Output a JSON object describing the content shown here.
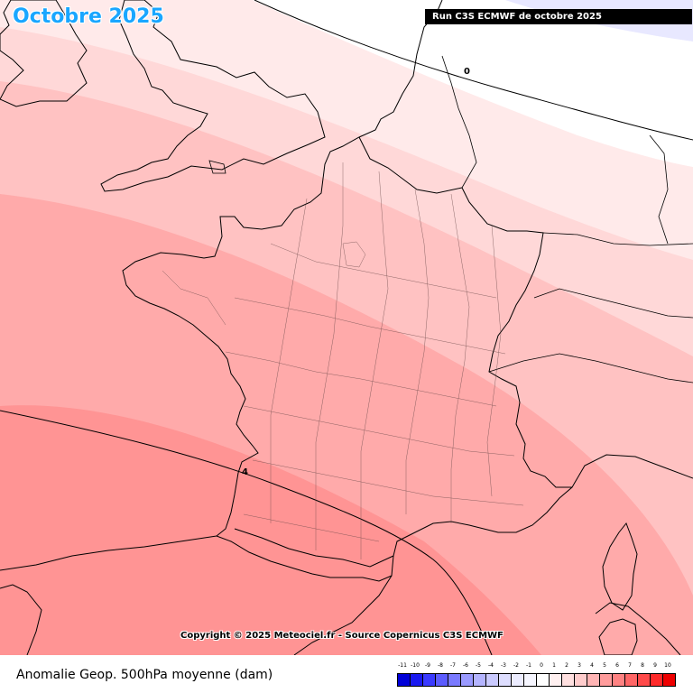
{
  "title": "Octobre 2025",
  "run_label": "Run C3S ECMWF de octobre 2025",
  "copyright": "Copyright © 2025 Meteociel.fr - Source Copernicus C3S ECMWF",
  "caption": "Anomalie Geop. 500hPa moyenne (dam)",
  "contours": [
    {
      "label": "0"
    },
    {
      "label": "4"
    }
  ],
  "legend": {
    "labels": [
      "-11",
      "-10",
      "-9",
      "-8",
      "-7",
      "-6",
      "-5",
      "-4",
      "-3",
      "-2",
      "-1",
      "0",
      "1",
      "2",
      "3",
      "4",
      "5",
      "6",
      "7",
      "8",
      "9",
      "10"
    ],
    "colors": [
      "#0000d8",
      "#1a1af0",
      "#3a3aff",
      "#5c5cff",
      "#7a7aff",
      "#9a9aff",
      "#b4b4ff",
      "#cacaff",
      "#dedeff",
      "#ececff",
      "#f6f6ff",
      "#ffffff",
      "#fff0f0",
      "#ffe0e0",
      "#ffcccc",
      "#ffb4b4",
      "#ff9c9c",
      "#ff8282",
      "#ff6666",
      "#ff4a4a",
      "#ff2a2a",
      "#ee0000"
    ]
  },
  "colors": {
    "title": "#19a6ff",
    "band_1": "#ffeaea",
    "band_2": "#ffd8d8",
    "band_3": "#ffc2c2",
    "band_4": "#ffaaaa",
    "band_5": "#ff9494",
    "negative": "#e8e8ff",
    "coastline": "#000000"
  }
}
